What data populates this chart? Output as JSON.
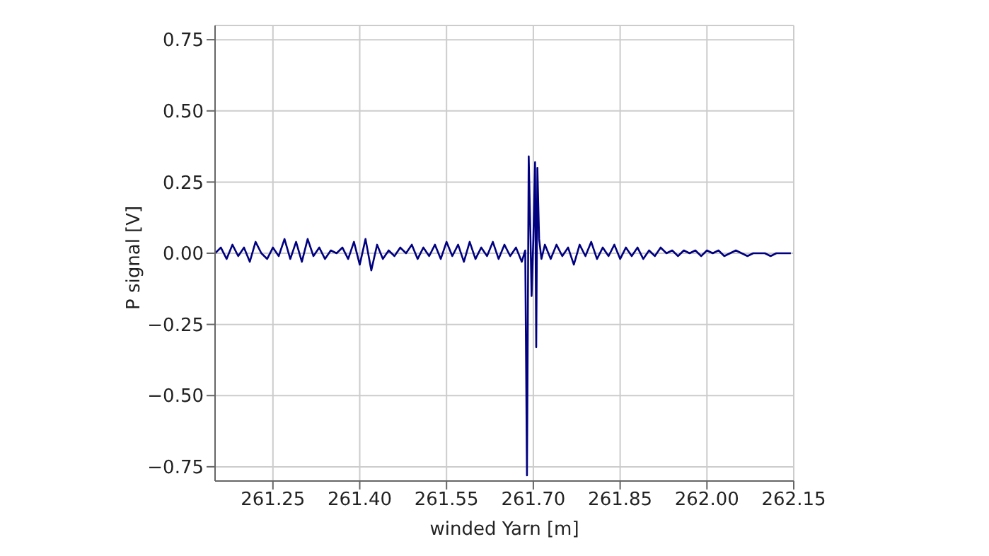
{
  "chart_data": {
    "type": "line",
    "xlabel": "winded Yarn [m]",
    "ylabel": "P signal [V]",
    "x": [
      261.15,
      261.16,
      261.17,
      261.18,
      261.19,
      261.2,
      261.21,
      261.22,
      261.23,
      261.24,
      261.25,
      261.26,
      261.27,
      261.28,
      261.29,
      261.3,
      261.31,
      261.32,
      261.33,
      261.34,
      261.35,
      261.36,
      261.37,
      261.38,
      261.39,
      261.4,
      261.41,
      261.42,
      261.43,
      261.44,
      261.45,
      261.46,
      261.47,
      261.48,
      261.49,
      261.5,
      261.51,
      261.52,
      261.53,
      261.54,
      261.55,
      261.56,
      261.57,
      261.58,
      261.59,
      261.6,
      261.61,
      261.62,
      261.63,
      261.64,
      261.65,
      261.66,
      261.67,
      261.68,
      261.686,
      261.689,
      261.692,
      261.695,
      261.697,
      261.7,
      261.703,
      261.705,
      261.707,
      261.71,
      261.714,
      261.72,
      261.73,
      261.74,
      261.75,
      261.76,
      261.77,
      261.78,
      261.79,
      261.8,
      261.81,
      261.82,
      261.83,
      261.84,
      261.85,
      261.86,
      261.87,
      261.88,
      261.89,
      261.9,
      261.91,
      261.92,
      261.93,
      261.94,
      261.95,
      261.96,
      261.97,
      261.98,
      261.99,
      262.0,
      262.01,
      262.02,
      262.03,
      262.04,
      262.05,
      262.06,
      262.07,
      262.08,
      262.09,
      262.1,
      262.11,
      262.12,
      262.13,
      262.145
    ],
    "series": [
      {
        "color": "#000080",
        "values": [
          0.0,
          0.02,
          -0.02,
          0.03,
          -0.01,
          0.02,
          -0.03,
          0.04,
          0.0,
          -0.02,
          0.02,
          -0.01,
          0.05,
          -0.02,
          0.04,
          -0.03,
          0.05,
          -0.01,
          0.02,
          -0.02,
          0.01,
          0.0,
          0.02,
          -0.02,
          0.04,
          -0.04,
          0.05,
          -0.06,
          0.03,
          -0.02,
          0.01,
          -0.01,
          0.02,
          0.0,
          0.03,
          -0.02,
          0.02,
          -0.01,
          0.03,
          -0.02,
          0.04,
          -0.01,
          0.03,
          -0.03,
          0.04,
          -0.02,
          0.02,
          -0.01,
          0.04,
          -0.02,
          0.03,
          -0.01,
          0.02,
          -0.03,
          0.01,
          -0.78,
          0.34,
          0.06,
          -0.15,
          0.05,
          0.32,
          -0.33,
          0.3,
          0.05,
          -0.02,
          0.03,
          -0.02,
          0.03,
          -0.01,
          0.02,
          -0.04,
          0.03,
          -0.01,
          0.04,
          -0.02,
          0.02,
          -0.01,
          0.03,
          -0.02,
          0.02,
          -0.01,
          0.02,
          -0.02,
          0.01,
          -0.01,
          0.02,
          0.0,
          0.01,
          -0.01,
          0.01,
          0.0,
          0.01,
          -0.01,
          0.01,
          0.0,
          0.01,
          -0.01,
          0.0,
          0.01,
          0.0,
          -0.01,
          0.0,
          0.0,
          0.0,
          -0.01,
          0.0,
          0.0,
          0.0
        ]
      }
    ],
    "xlim": [
      261.15,
      262.15
    ],
    "ylim": [
      -0.8,
      0.8
    ],
    "xticks": [
      {
        "value": 261.25,
        "label": "261.25"
      },
      {
        "value": 261.4,
        "label": "261.40"
      },
      {
        "value": 261.55,
        "label": "261.55"
      },
      {
        "value": 261.7,
        "label": "261.70"
      },
      {
        "value": 261.85,
        "label": "261.85"
      },
      {
        "value": 262.0,
        "label": "262.00"
      },
      {
        "value": 262.15,
        "label": "262.15"
      }
    ],
    "yticks": [
      {
        "value": -0.75,
        "label": "−0.75"
      },
      {
        "value": -0.5,
        "label": "−0.50"
      },
      {
        "value": -0.25,
        "label": "−0.25"
      },
      {
        "value": 0,
        "label": "0.00"
      },
      {
        "value": 0.25,
        "label": "0.25"
      },
      {
        "value": 0.5,
        "label": "0.50"
      },
      {
        "value": 0.75,
        "label": "0.75"
      }
    ],
    "grid": true,
    "legend": false,
    "marker": "none",
    "line_style": "solid"
  }
}
